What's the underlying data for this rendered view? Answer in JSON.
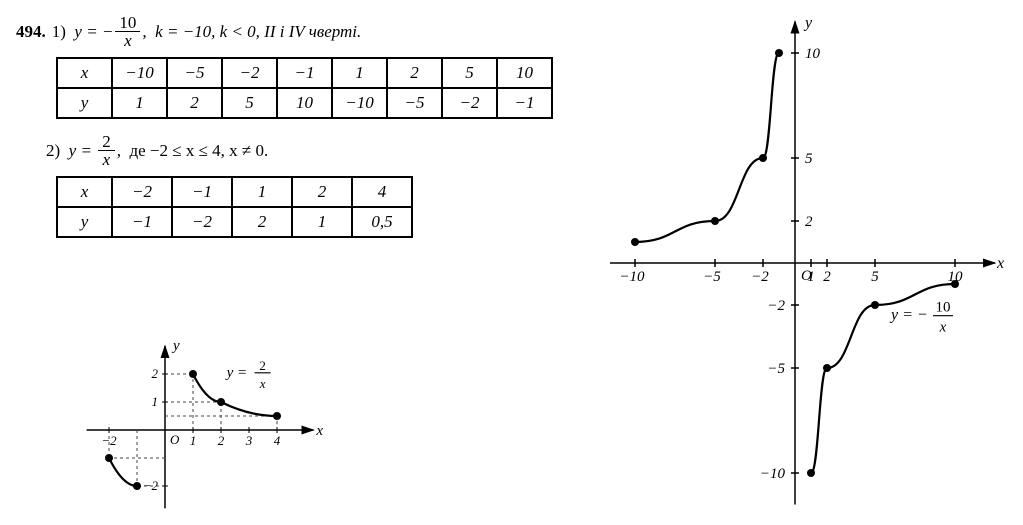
{
  "problem_number": "494.",
  "part1": {
    "label": "1)",
    "eq_prefix": "y = −",
    "frac_num": "10",
    "frac_den": "x",
    "rest": ",  k = −10, k < 0, II і IV чверті."
  },
  "table1": {
    "row_x_label": "x",
    "row_y_label": "y",
    "x": [
      "−10",
      "−5",
      "−2",
      "−1",
      "1",
      "2",
      "5",
      "10"
    ],
    "y": [
      "1",
      "2",
      "5",
      "10",
      "−10",
      "−5",
      "−2",
      "−1"
    ]
  },
  "part2": {
    "label": "2)",
    "eq_prefix": "y =",
    "frac_num": "2",
    "frac_den": "x",
    "rest": ",  де −2 ≤ x ≤ 4, x ≠ 0."
  },
  "table2": {
    "row_x_label": "x",
    "row_y_label": "y",
    "x": [
      "−2",
      "−1",
      "1",
      "2",
      "4"
    ],
    "y": [
      "−1",
      "−2",
      "2",
      "1",
      "0,5"
    ]
  },
  "chart_big": {
    "x_label": "x",
    "y_label": "y",
    "origin_label": "O",
    "eq_label_prefix": "y = −",
    "eq_frac_num": "10",
    "eq_frac_den": "x",
    "xticks": [
      -10,
      -5,
      -2,
      1,
      2,
      5,
      10
    ],
    "yticks": [
      -10,
      -5,
      -2,
      2,
      5,
      10
    ],
    "points_q2": [
      [
        -10,
        1
      ],
      [
        -5,
        2
      ],
      [
        -2,
        5
      ],
      [
        -1,
        10
      ]
    ],
    "points_q4": [
      [
        1,
        -10
      ],
      [
        2,
        -5
      ],
      [
        5,
        -2
      ],
      [
        10,
        -1
      ]
    ],
    "axis_color": "#000000",
    "curve_color": "#000000",
    "point_radius": 4,
    "line_width": 2.2
  },
  "chart_small": {
    "x_label": "x",
    "y_label": "y",
    "origin_label": "O",
    "eq_label_prefix": "y =",
    "eq_frac_num": "2",
    "eq_frac_den": "x",
    "xticks": [
      -2,
      1,
      2,
      3,
      4
    ],
    "yticks": [
      -2,
      1,
      2
    ],
    "points_pos": [
      [
        1,
        2
      ],
      [
        2,
        1
      ],
      [
        4,
        0.5
      ]
    ],
    "points_neg": [
      [
        -2,
        -1
      ],
      [
        -1,
        -2
      ]
    ],
    "axis_color": "#000000",
    "curve_color": "#000000",
    "dash_color": "#454545",
    "point_radius": 4,
    "line_width": 2.2
  }
}
